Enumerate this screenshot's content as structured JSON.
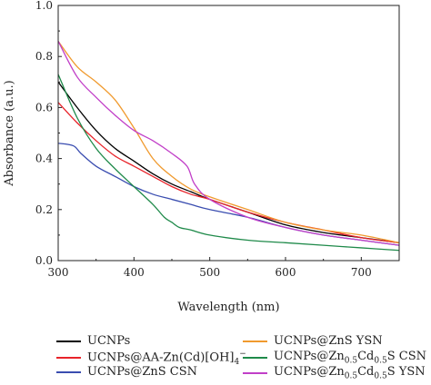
{
  "chart_data": {
    "type": "line",
    "xlabel": "Wavelength (nm)",
    "ylabel": "Absorbance (a.u.)",
    "xlim": [
      300,
      750
    ],
    "ylim": [
      0.0,
      1.0
    ],
    "xticks": [
      300,
      400,
      500,
      600,
      700
    ],
    "yticks": [
      0.0,
      0.2,
      0.4,
      0.6,
      0.8,
      1.0
    ],
    "x_tick_labels": [
      "300",
      "400",
      "500",
      "600",
      "700"
    ],
    "y_tick_labels": [
      "0.0",
      "0.2",
      "0.4",
      "0.6",
      "0.8",
      "1.0"
    ],
    "grid": false,
    "legend_position": "bottom",
    "series": [
      {
        "name": "UCNPs",
        "label_parts": [
          "UCNPs"
        ],
        "color": "#000000",
        "x": [
          300,
          325,
          350,
          375,
          400,
          425,
          450,
          475,
          500,
          550,
          600,
          650,
          700,
          750
        ],
        "y": [
          0.7,
          0.6,
          0.51,
          0.44,
          0.39,
          0.34,
          0.3,
          0.27,
          0.24,
          0.19,
          0.14,
          0.11,
          0.09,
          0.07
        ]
      },
      {
        "name": "UCNPs@AA-Zn(Cd)[OH]4−",
        "label_parts": [
          "UCNPs@AA-Zn(Cd)[OH]",
          "4",
          "−"
        ],
        "color": "#e8232a",
        "x": [
          300,
          325,
          350,
          375,
          400,
          425,
          450,
          475,
          500,
          550,
          600,
          650,
          700,
          750
        ],
        "y": [
          0.62,
          0.54,
          0.47,
          0.41,
          0.37,
          0.33,
          0.29,
          0.26,
          0.24,
          0.19,
          0.15,
          0.12,
          0.09,
          0.07
        ]
      },
      {
        "name": "UCNPs@ZnS CSN",
        "label_parts": [
          "UCNPs@ZnS CSN"
        ],
        "color": "#3a4db0",
        "x": [
          300,
          320,
          330,
          350,
          375,
          400,
          425,
          450,
          475,
          500,
          550,
          600,
          650,
          700,
          750
        ],
        "y": [
          0.46,
          0.45,
          0.42,
          0.37,
          0.33,
          0.29,
          0.26,
          0.24,
          0.22,
          0.2,
          0.17,
          0.13,
          0.1,
          0.08,
          0.06
        ]
      },
      {
        "name": "UCNPs@ZnS YSN",
        "label_parts": [
          "UCNPs@ZnS YSN"
        ],
        "color": "#f09a2e",
        "x": [
          300,
          325,
          350,
          375,
          400,
          425,
          450,
          475,
          500,
          550,
          600,
          650,
          700,
          750
        ],
        "y": [
          0.86,
          0.76,
          0.7,
          0.63,
          0.52,
          0.4,
          0.33,
          0.28,
          0.25,
          0.2,
          0.15,
          0.12,
          0.1,
          0.07
        ]
      },
      {
        "name": "UCNPs@Zn0.5Cd0.5S CSN",
        "label_parts": [
          "UCNPs@Zn",
          "0.5",
          "Cd",
          "0.5",
          "S CSN"
        ],
        "color": "#1f8a4a",
        "x": [
          300,
          325,
          350,
          375,
          400,
          425,
          440,
          450,
          460,
          475,
          500,
          550,
          600,
          650,
          700,
          750
        ],
        "y": [
          0.73,
          0.56,
          0.44,
          0.36,
          0.29,
          0.22,
          0.17,
          0.15,
          0.13,
          0.12,
          0.1,
          0.08,
          0.07,
          0.06,
          0.05,
          0.04
        ]
      },
      {
        "name": "UCNPs@Zn0.5Cd0.5S YSN",
        "label_parts": [
          "UCNPs@Zn",
          "0.5",
          "Cd",
          "0.5",
          "S YSN"
        ],
        "color": "#c13fc8",
        "x": [
          300,
          325,
          350,
          375,
          400,
          425,
          450,
          470,
          480,
          500,
          550,
          600,
          650,
          700,
          750
        ],
        "y": [
          0.86,
          0.72,
          0.64,
          0.57,
          0.51,
          0.47,
          0.42,
          0.37,
          0.3,
          0.24,
          0.17,
          0.13,
          0.1,
          0.08,
          0.06
        ]
      }
    ]
  }
}
